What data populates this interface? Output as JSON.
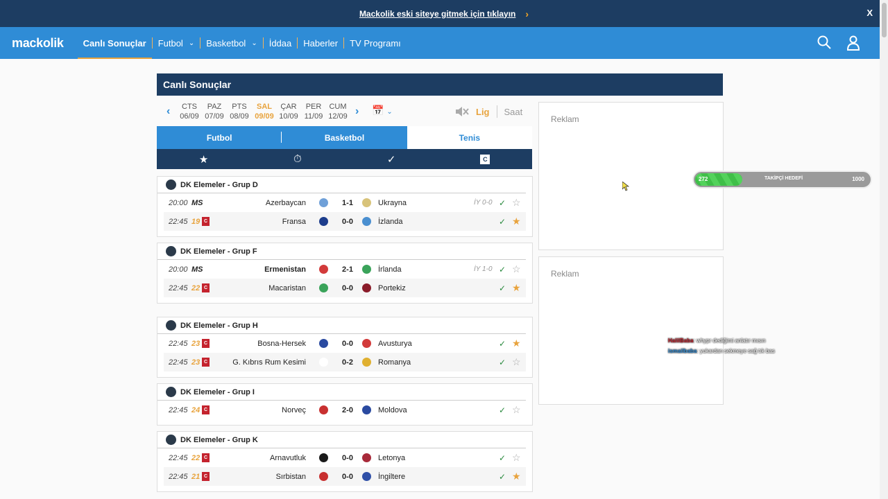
{
  "banner": {
    "text": "Mackolik eski siteye gitmek için tıklayın",
    "close": "X"
  },
  "nav": {
    "logo": "mackolik",
    "items": [
      "Canlı Sonuçlar",
      "Futbol",
      "Basketbol",
      "İddaa",
      "Haberler",
      "TV Programı"
    ]
  },
  "page_title": "Canlı Sonuçlar",
  "dates": [
    {
      "day": "CTS",
      "date": "06/09"
    },
    {
      "day": "PAZ",
      "date": "07/09"
    },
    {
      "day": "PTS",
      "date": "08/09"
    },
    {
      "day": "SAL",
      "date": "09/09"
    },
    {
      "day": "ÇAR",
      "date": "10/09"
    },
    {
      "day": "PER",
      "date": "11/09"
    },
    {
      "day": "CUM",
      "date": "12/09"
    }
  ],
  "sort": {
    "lig": "Lig",
    "saat": "Saat"
  },
  "sport_tabs": [
    "Futbol",
    "Basketbol",
    "Tenis"
  ],
  "filter_c": "C",
  "groups": [
    {
      "name": "DK Elemeler - Grup D",
      "matches": [
        {
          "time": "20:00",
          "status": "MS",
          "home": "Azerbaycan",
          "score": "1-1",
          "away": "Ukrayna",
          "ht": "İY 0-0"
        },
        {
          "time": "22:45",
          "status": "19",
          "home": "Fransa",
          "score": "0-0",
          "away": "İzlanda",
          "ht": ""
        }
      ]
    },
    {
      "name": "DK Elemeler - Grup F",
      "matches": [
        {
          "time": "20:00",
          "status": "MS",
          "home": "Ermenistan",
          "score": "2-1",
          "away": "İrlanda",
          "ht": "İY 1-0"
        },
        {
          "time": "22:45",
          "status": "22",
          "home": "Macaristan",
          "score": "0-0",
          "away": "Portekiz",
          "ht": ""
        }
      ]
    },
    {
      "name": "DK Elemeler - Grup H",
      "matches": [
        {
          "time": "22:45",
          "status": "23",
          "home": "Bosna-Hersek",
          "score": "0-0",
          "away": "Avusturya",
          "ht": ""
        },
        {
          "time": "22:45",
          "status": "23",
          "home": "G. Kıbrıs Rum Kesimi",
          "score": "0-2",
          "away": "Romanya",
          "ht": ""
        }
      ]
    },
    {
      "name": "DK Elemeler - Grup I",
      "matches": [
        {
          "time": "22:45",
          "status": "24",
          "home": "Norveç",
          "score": "2-0",
          "away": "Moldova",
          "ht": ""
        }
      ]
    },
    {
      "name": "DK Elemeler - Grup K",
      "matches": [
        {
          "time": "22:45",
          "status": "22",
          "home": "Arnavutluk",
          "score": "0-0",
          "away": "Letonya",
          "ht": ""
        },
        {
          "time": "22:45",
          "status": "21",
          "home": "Sırbistan",
          "score": "0-0",
          "away": "İngiltere",
          "ht": ""
        }
      ]
    }
  ],
  "ads": [
    "Reklam",
    "Reklam"
  ],
  "overlay": {
    "goal_current": "272",
    "goal_label": "TAKİPÇİ HEDEFİ",
    "goal_target": "1000",
    "goal_progress": 0.272,
    "chat": [
      {
        "user": "HalilBaba",
        "msg": ": whypr dediğimi anlatır mısın"
      },
      {
        "user": "ismailbaba",
        "msg": ": yukardan sekmeye sağ tık bas"
      }
    ]
  },
  "colors": {
    "navy": "#1d3d62",
    "blue": "#2f8cd6",
    "orange": "#e8a33d",
    "red": "#c4232e"
  }
}
